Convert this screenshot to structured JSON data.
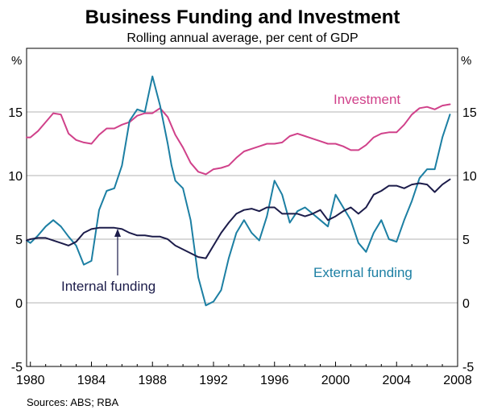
{
  "chart_data": {
    "type": "line",
    "title": "Business Funding and Investment",
    "subtitle": "Rolling annual average, per cent of GDP",
    "y_unit_left": "%",
    "y_unit_right": "%",
    "ylim": [
      -5,
      20
    ],
    "y_ticks": [
      -5,
      0,
      5,
      10,
      15
    ],
    "y_tick_labels": [
      "-5",
      "0",
      "5",
      "10",
      "15"
    ],
    "xlim": [
      1979.75,
      2008.0
    ],
    "x_ticks": [
      1980,
      1984,
      1988,
      1992,
      1996,
      2000,
      2004,
      2008
    ],
    "x_tick_labels": [
      "1980",
      "1984",
      "1988",
      "1992",
      "1996",
      "2000",
      "2004",
      "2008"
    ],
    "source": "Sources: ABS; RBA",
    "series": [
      {
        "name": "Investment",
        "color": "#d0418a",
        "x": [
          1979.75,
          1980.0,
          1980.5,
          1981.0,
          1981.5,
          1982.0,
          1982.5,
          1983.0,
          1983.5,
          1984.0,
          1984.5,
          1985.0,
          1985.5,
          1986.0,
          1986.5,
          1987.0,
          1987.5,
          1988.0,
          1988.5,
          1989.0,
          1989.5,
          1990.0,
          1990.5,
          1991.0,
          1991.5,
          1992.0,
          1992.5,
          1993.0,
          1993.5,
          1994.0,
          1994.5,
          1995.0,
          1995.5,
          1996.0,
          1996.5,
          1997.0,
          1997.5,
          1998.0,
          1998.5,
          1999.0,
          1999.5,
          2000.0,
          2000.5,
          2001.0,
          2001.5,
          2002.0,
          2002.5,
          2003.0,
          2003.5,
          2004.0,
          2004.5,
          2005.0,
          2005.5,
          2006.0,
          2006.5,
          2007.0,
          2007.5
        ],
        "values": [
          13.0,
          13.0,
          13.5,
          14.2,
          14.9,
          14.8,
          13.3,
          12.8,
          12.6,
          12.5,
          13.2,
          13.7,
          13.7,
          14.0,
          14.2,
          14.7,
          14.9,
          14.9,
          15.3,
          14.6,
          13.2,
          12.2,
          11.0,
          10.3,
          10.1,
          10.5,
          10.6,
          10.8,
          11.4,
          11.9,
          12.1,
          12.3,
          12.5,
          12.5,
          12.6,
          13.1,
          13.3,
          13.1,
          12.9,
          12.7,
          12.5,
          12.5,
          12.3,
          12.0,
          12.0,
          12.4,
          13.0,
          13.3,
          13.4,
          13.4,
          14.0,
          14.8,
          15.3,
          15.4,
          15.2,
          15.5,
          15.6
        ]
      },
      {
        "name": "External funding",
        "color": "#1c7fa3",
        "x": [
          1979.75,
          1980.0,
          1980.5,
          1981.0,
          1981.5,
          1982.0,
          1982.5,
          1983.0,
          1983.5,
          1984.0,
          1984.5,
          1985.0,
          1985.5,
          1986.0,
          1986.5,
          1987.0,
          1987.5,
          1988.0,
          1988.5,
          1989.0,
          1989.25,
          1989.5,
          1990.0,
          1990.5,
          1991.0,
          1991.5,
          1992.0,
          1992.5,
          1993.0,
          1993.5,
          1994.0,
          1994.5,
          1995.0,
          1995.5,
          1996.0,
          1996.5,
          1997.0,
          1997.5,
          1998.0,
          1998.5,
          1999.0,
          1999.5,
          2000.0,
          2000.5,
          2001.0,
          2001.5,
          2002.0,
          2002.5,
          2003.0,
          2003.5,
          2004.0,
          2004.5,
          2005.0,
          2005.5,
          2006.0,
          2006.5,
          2007.0,
          2007.5
        ],
        "values": [
          4.9,
          4.7,
          5.3,
          6.0,
          6.5,
          6.0,
          5.2,
          4.5,
          3.0,
          3.3,
          7.3,
          8.8,
          9.0,
          10.8,
          14.3,
          15.2,
          15.0,
          17.8,
          15.5,
          12.5,
          10.8,
          9.6,
          9.0,
          6.5,
          2.0,
          -0.2,
          0.1,
          1.0,
          3.5,
          5.5,
          6.5,
          5.5,
          4.9,
          6.8,
          9.6,
          8.5,
          6.3,
          7.2,
          7.5,
          7.0,
          6.5,
          6.0,
          8.5,
          7.5,
          6.5,
          4.7,
          4.0,
          5.5,
          6.5,
          5.0,
          4.8,
          6.5,
          8.0,
          9.8,
          10.5,
          10.5,
          13.0,
          14.8
        ]
      },
      {
        "name": "Internal funding",
        "color": "#1c1c4a",
        "x": [
          1979.75,
          1980.0,
          1980.5,
          1981.0,
          1981.5,
          1982.0,
          1982.5,
          1983.0,
          1983.5,
          1984.0,
          1984.5,
          1985.0,
          1985.5,
          1986.0,
          1986.5,
          1987.0,
          1987.5,
          1988.0,
          1988.5,
          1989.0,
          1989.5,
          1990.0,
          1990.5,
          1991.0,
          1991.5,
          1992.0,
          1992.5,
          1993.0,
          1993.5,
          1994.0,
          1994.5,
          1995.0,
          1995.5,
          1996.0,
          1996.5,
          1997.0,
          1997.5,
          1998.0,
          1998.5,
          1999.0,
          1999.5,
          2000.0,
          2000.5,
          2001.0,
          2001.5,
          2002.0,
          2002.5,
          2003.0,
          2003.5,
          2004.0,
          2004.5,
          2005.0,
          2005.5,
          2006.0,
          2006.5,
          2007.0,
          2007.5
        ],
        "values": [
          4.9,
          5.0,
          5.1,
          5.1,
          4.9,
          4.7,
          4.5,
          4.8,
          5.5,
          5.8,
          5.9,
          5.9,
          5.9,
          5.8,
          5.5,
          5.3,
          5.3,
          5.2,
          5.2,
          5.0,
          4.5,
          4.2,
          3.9,
          3.6,
          3.5,
          4.5,
          5.5,
          6.3,
          7.0,
          7.3,
          7.4,
          7.2,
          7.5,
          7.5,
          7.0,
          7.0,
          7.0,
          6.8,
          7.0,
          7.3,
          6.5,
          6.8,
          7.2,
          7.5,
          7.0,
          7.5,
          8.5,
          8.8,
          9.2,
          9.2,
          9.0,
          9.3,
          9.4,
          9.3,
          8.7,
          9.3,
          9.7
        ]
      }
    ],
    "annotations": [
      {
        "text": "Investment",
        "series": "Investment"
      },
      {
        "text": "External funding",
        "series": "External funding"
      },
      {
        "text": "Internal funding",
        "series": "Internal funding"
      }
    ]
  }
}
